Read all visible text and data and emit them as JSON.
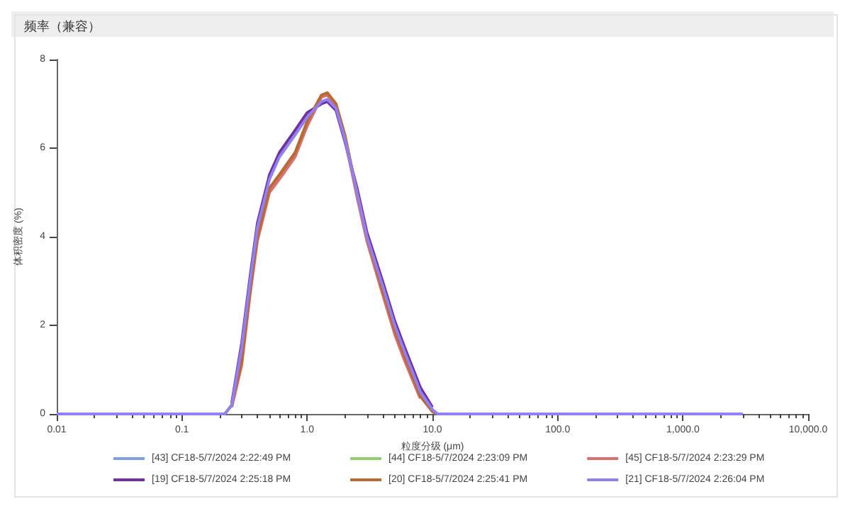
{
  "chart_data": {
    "type": "line",
    "title": "频率（兼容）",
    "xlabel": "粒度分级 (μm)",
    "ylabel": "体积密度 (%)",
    "log": "x",
    "x": [
      0.01,
      0.22,
      0.25,
      0.3,
      0.35,
      0.4,
      0.5,
      0.6,
      0.8,
      1.0,
      1.3,
      1.45,
      1.7,
      2.0,
      2.5,
      3.0,
      4.0,
      5.0,
      6.0,
      8.0,
      10,
      11,
      3000
    ],
    "series": [
      {
        "name": "[43] CF18-5/7/2024 2:22:49 PM",
        "color": "#7f9fdc",
        "values": [
          null,
          null,
          null,
          null,
          null,
          null,
          null,
          null,
          null,
          null,
          null,
          null,
          null,
          null,
          null,
          null,
          null,
          null,
          null,
          null,
          null,
          null,
          null
        ]
      },
      {
        "name": "[44] CF18-5/7/2024 2:23:09 PM",
        "color": "#90d070",
        "values": [
          null,
          null,
          null,
          null,
          null,
          null,
          null,
          null,
          null,
          null,
          null,
          null,
          null,
          null,
          null,
          null,
          null,
          null,
          null,
          null,
          null,
          null,
          null
        ]
      },
      {
        "name": "[45] CF18-5/7/2024 2:23:29 PM",
        "color": "#d87070",
        "values": [
          null,
          null,
          0.15,
          1.1,
          2.7,
          3.9,
          5.0,
          5.3,
          5.8,
          6.5,
          7.15,
          7.2,
          6.9,
          6.2,
          4.9,
          3.9,
          2.7,
          1.8,
          1.2,
          0.35,
          null,
          null,
          null
        ]
      },
      {
        "name": "[19] CF18-5/7/2024 2:25:18 PM",
        "color": "#7030a0",
        "values": [
          null,
          null,
          0.25,
          1.6,
          3.1,
          4.3,
          5.4,
          5.9,
          6.4,
          6.8,
          7.0,
          7.05,
          6.85,
          6.15,
          5.1,
          4.1,
          3.0,
          2.1,
          1.5,
          0.6,
          0.15,
          null,
          null
        ]
      },
      {
        "name": "[20] CF18-5/7/2024 2:25:41 PM",
        "color": "#b86a30",
        "values": [
          0,
          0,
          0.2,
          1.2,
          2.8,
          4.0,
          5.1,
          5.4,
          5.9,
          6.6,
          7.2,
          7.25,
          7.0,
          6.3,
          5.0,
          4.0,
          2.8,
          1.9,
          1.3,
          0.4,
          0.05,
          0,
          0
        ]
      },
      {
        "name": "[21] CF18-5/7/2024 2:26:04 PM",
        "color": "#9080f0",
        "values": [
          0,
          0,
          0.2,
          1.5,
          3.0,
          4.2,
          5.3,
          5.8,
          6.3,
          6.7,
          7.05,
          7.1,
          6.9,
          6.2,
          5.0,
          4.0,
          2.9,
          2.0,
          1.4,
          0.5,
          0.1,
          0,
          0
        ]
      }
    ],
    "xlim": [
      0.01,
      10000
    ],
    "xticks": [
      0.01,
      0.1,
      {
        "value": 1,
        "label": "1.0"
      },
      {
        "value": 10,
        "label": "10.0"
      },
      {
        "value": 100,
        "label": "100.0"
      },
      {
        "value": 1000,
        "label": "1,000.0"
      },
      {
        "value": 10000,
        "label": "10,000.0"
      }
    ],
    "ylim": [
      0,
      8
    ],
    "yticks": [
      0,
      2,
      4,
      6,
      8
    ],
    "grid": false,
    "legend": "bottom",
    "marker": "none",
    "line_style": "solid"
  }
}
